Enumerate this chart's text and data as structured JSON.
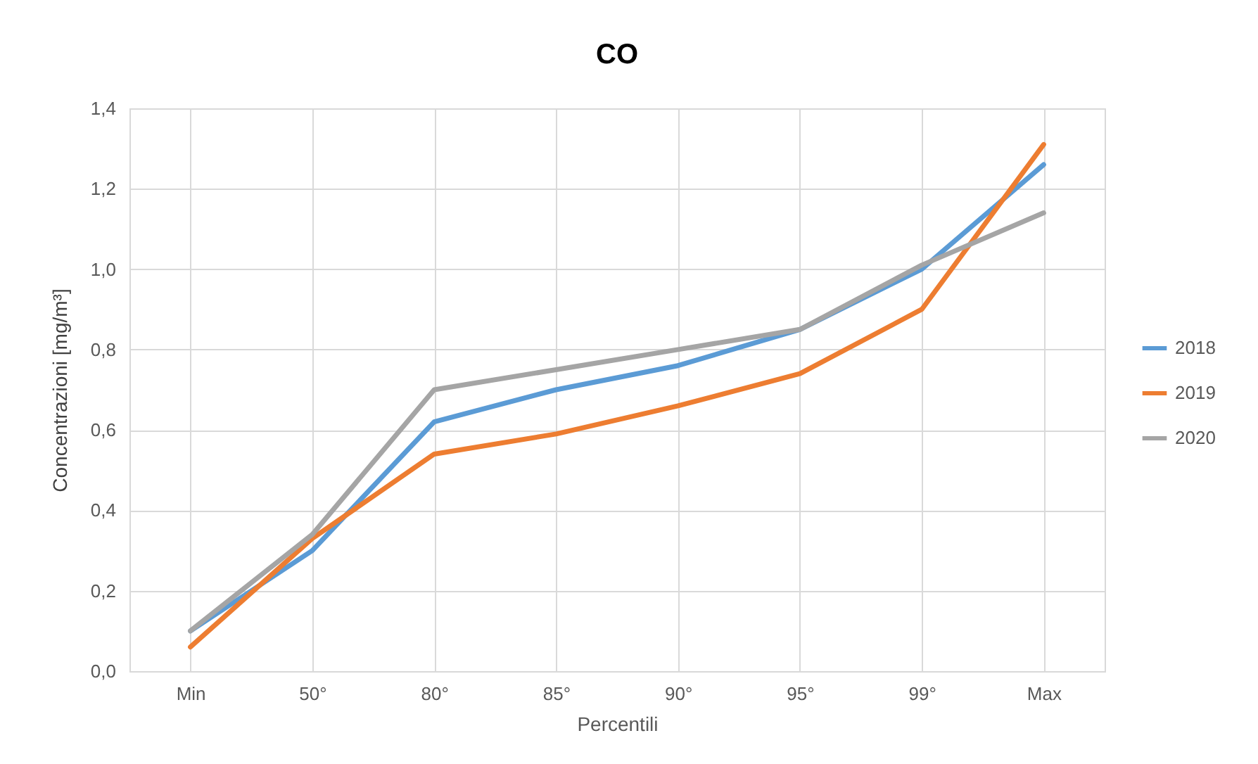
{
  "chart_data": {
    "type": "line",
    "title": "CO",
    "xlabel": "Percentili",
    "ylabel": "Concentrazioni [mg/m³]",
    "categories": [
      "Min",
      "50°",
      "80°",
      "85°",
      "90°",
      "95°",
      "99°",
      "Max"
    ],
    "series": [
      {
        "name": "2018",
        "color": "#5b9bd5",
        "values": [
          0.1,
          0.3,
          0.62,
          0.7,
          0.76,
          0.85,
          1.0,
          1.26
        ]
      },
      {
        "name": "2019",
        "color": "#ed7d31",
        "values": [
          0.06,
          0.33,
          0.54,
          0.59,
          0.66,
          0.74,
          0.9,
          1.31
        ]
      },
      {
        "name": "2020",
        "color": "#a5a5a5",
        "values": [
          0.1,
          0.34,
          0.7,
          0.75,
          0.8,
          0.85,
          1.01,
          1.14
        ]
      }
    ],
    "ylim": [
      0,
      1.4
    ],
    "yticks": [
      {
        "value": 0,
        "label": "0,0"
      },
      {
        "value": 0.2,
        "label": "0,2"
      },
      {
        "value": 0.4,
        "label": "0,4"
      },
      {
        "value": 0.6,
        "label": "0,6"
      },
      {
        "value": 0.8,
        "label": "0,8"
      },
      {
        "value": 1.0,
        "label": "1,0"
      },
      {
        "value": 1.2,
        "label": "1,2"
      },
      {
        "value": 1.4,
        "label": "1,4"
      }
    ],
    "grid": true,
    "legend": "right",
    "marker": "none",
    "line_style": "solid"
  }
}
